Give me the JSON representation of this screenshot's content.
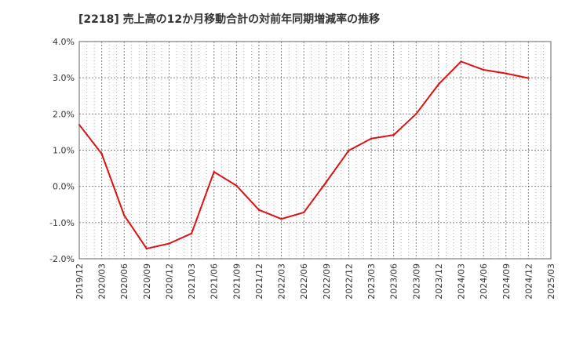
{
  "chart_data": {
    "type": "line",
    "title": "[2218]  売上高の12か月移動合計の対前年同期増減率の推移",
    "xlabel": "",
    "ylabel": "",
    "ylim": [
      -2.0,
      4.0
    ],
    "y_ticks": [
      4.0,
      3.0,
      2.0,
      1.0,
      0.0,
      -1.0,
      -2.0
    ],
    "y_tick_labels": [
      "4.0%",
      "3.0%",
      "2.0%",
      "1.0%",
      "0.0%",
      "-1.0%",
      "-2.0%"
    ],
    "categories": [
      "2019/12",
      "2020/03",
      "2020/06",
      "2020/09",
      "2020/12",
      "2021/03",
      "2021/06",
      "2021/09",
      "2021/12",
      "2022/03",
      "2022/06",
      "2022/09",
      "2022/12",
      "2023/03",
      "2023/06",
      "2023/09",
      "2023/12",
      "2024/03",
      "2024/06",
      "2024/09",
      "2024/12",
      "2025/03"
    ],
    "series": [
      {
        "name": "増減率",
        "color": "#dd1111",
        "values": [
          1.7,
          0.9,
          -0.8,
          -1.72,
          -1.58,
          -1.3,
          0.4,
          0.02,
          -0.65,
          -0.9,
          -0.72,
          0.12,
          0.99,
          1.32,
          1.42,
          2.0,
          2.82,
          3.45,
          3.22,
          3.12,
          2.99,
          null
        ]
      }
    ],
    "grid": true,
    "grid_color": "#777777",
    "axis_color": "#666666"
  }
}
